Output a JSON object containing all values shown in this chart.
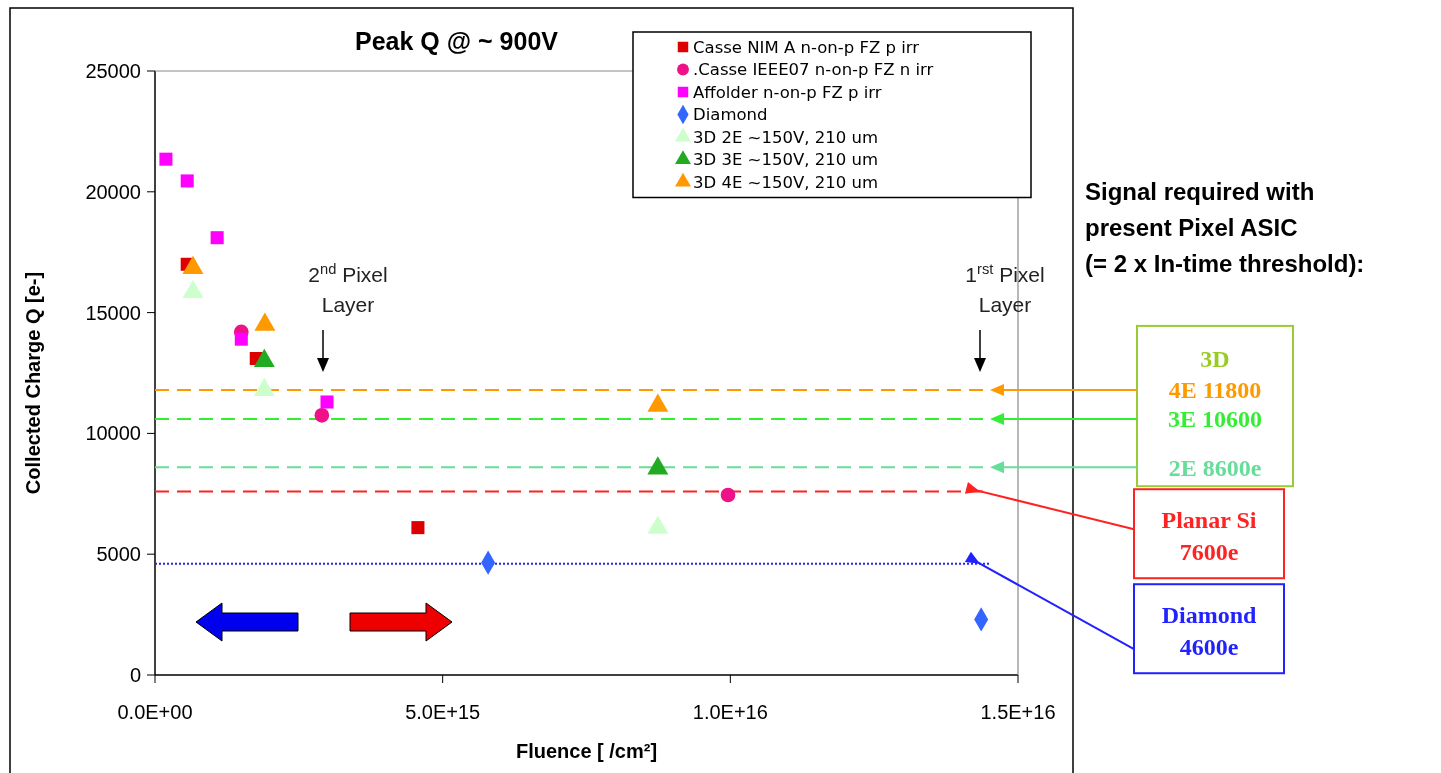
{
  "chart_data": {
    "type": "scatter",
    "title": "Peak Q @ ~ 900V",
    "xlabel": "Fluence [ /cm²]",
    "ylabel": "Collected Charge  Q [e-]",
    "xlim": [
      0,
      1.5e+16
    ],
    "xticks": [
      {
        "value": 0,
        "label": "0.0E+00"
      },
      {
        "value": 5000000000000000.0,
        "label": "5.0E+15"
      },
      {
        "value": 1e+16,
        "label": "1.0E+16"
      },
      {
        "value": 1.5e+16,
        "label": "1.5E+16"
      }
    ],
    "ylim": [
      0,
      25000
    ],
    "yticks": [
      0,
      5000,
      10000,
      15000,
      20000,
      25000
    ],
    "grid": false,
    "legend": "top right",
    "series": [
      {
        "name": "Casse NIM A n-on-p FZ p irr",
        "color": "#dd0000",
        "marker": "square",
        "x": [
          560000000000000.0,
          1760000000000000.0,
          4570000000000000.0
        ],
        "values": [
          17000,
          13100,
          6100
        ]
      },
      {
        "name": ".Casse IEEE07 n-on-p FZ n irr",
        "color": "#ee1188",
        "marker": "circle",
        "x": [
          1500000000000000.0,
          2900000000000000.0,
          9960000000000000.0
        ],
        "values": [
          14200,
          10750,
          7450
        ]
      },
      {
        "name": "Affolder n-on-p FZ p irr",
        "color": "#ff00ff",
        "marker": "square",
        "x": [
          190000000000000.0,
          560000000000000.0,
          1080000000000000.0,
          1500000000000000.0,
          2990000000000000.0
        ],
        "values": [
          21350,
          20450,
          18100,
          13900,
          11300
        ]
      },
      {
        "name": "Diamond",
        "color": "#3366ff",
        "marker": "diamond",
        "x": [
          5790000000000000.0,
          1.436e+16
        ],
        "values": [
          4650,
          2300
        ]
      },
      {
        "name": "3D 2E ~150V, 210 um",
        "color": "#ccffcc",
        "marker": "triangle",
        "x": [
          660000000000000.0,
          1900000000000000.0,
          8740000000000000.0
        ],
        "values": [
          15850,
          11800,
          6100
        ]
      },
      {
        "name": "3D 3E ~150V, 210 um",
        "color": "#22aa22",
        "marker": "triangle",
        "x": [
          1900000000000000.0,
          8740000000000000.0
        ],
        "values": [
          13000,
          8550
        ]
      },
      {
        "name": "3D 4E ~150V, 210 um",
        "color": "#ff9900",
        "marker": "triangle",
        "x": [
          660000000000000.0,
          1910000000000000.0,
          8740000000000000.0
        ],
        "values": [
          16850,
          14500,
          11150
        ]
      }
    ],
    "ref_lines": [
      {
        "axis": "y",
        "value": 11800,
        "label": "4E 11800",
        "color": "#ff9900",
        "line_style": "dashed"
      },
      {
        "axis": "y",
        "value": 10600,
        "label": "3E 10600",
        "color": "#33ee33",
        "line_style": "dashed"
      },
      {
        "axis": "y",
        "value": 8600,
        "label": "2E 8600e",
        "color": "#66dd99",
        "line_style": "dashed"
      },
      {
        "axis": "y",
        "value": 7600,
        "label": "Planar Si 7600e",
        "color": "#ff2222",
        "line_style": "dashed"
      },
      {
        "axis": "y",
        "value": 4600,
        "label": "Diamond 4600e",
        "color": "#2222ff",
        "line_style": "dotted"
      }
    ],
    "annotations": [
      "Signal required with",
      "present Pixel ASIC",
      "(= 2 x In-time threshold):",
      "3D",
      "2$^{nd}$ Pixel Layer",
      "1$^{rst}$ Pixel Layer"
    ]
  }
}
